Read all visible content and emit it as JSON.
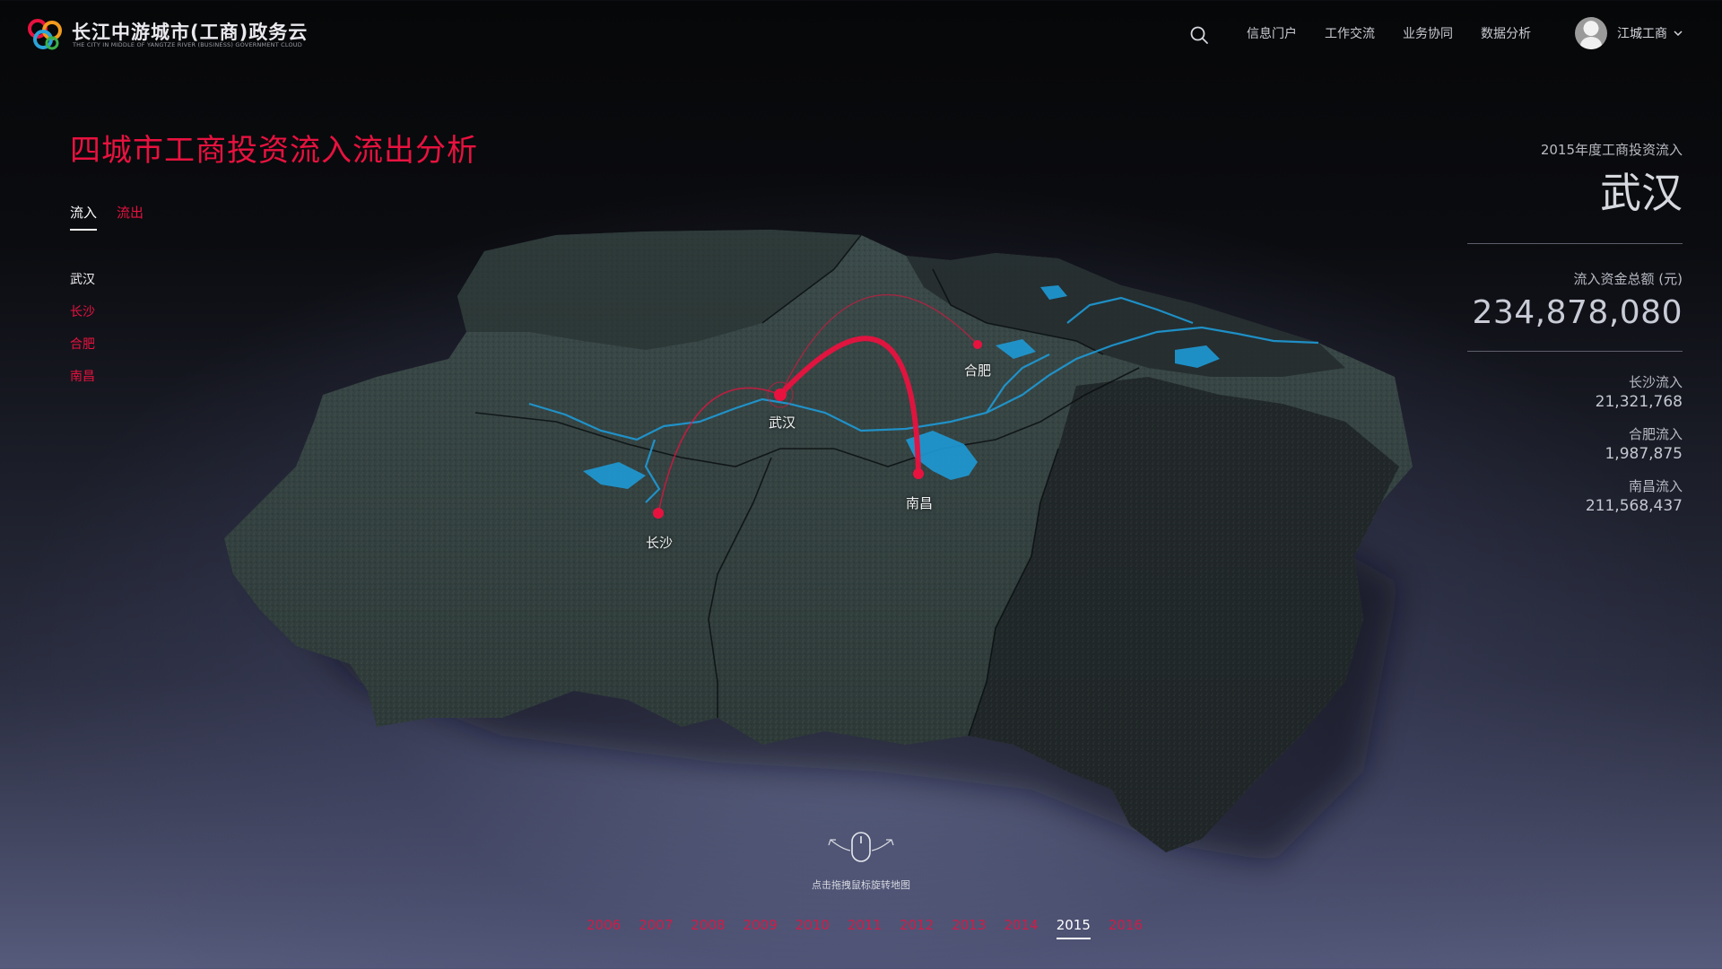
{
  "header": {
    "logo_title": "长江中游城市(工商)政务云",
    "logo_subtitle": "THE CITY IN MIDDLE OF YANGTZE RIVER (BUSINESS) GOVERNMENT CLOUD",
    "nav": [
      "信息门户",
      "工作交流",
      "业务协同",
      "数据分析"
    ],
    "user_name": "江城工商"
  },
  "page": {
    "title": "四城市工商投资流入流出分析",
    "tabs": {
      "inflow": "流入",
      "outflow": "流出"
    },
    "cities": [
      "武汉",
      "长沙",
      "合肥",
      "南昌"
    ]
  },
  "summary": {
    "year_label": "2015年度工商投资流入",
    "city": "武汉",
    "total_label": "流入资金总额 (元)",
    "total_value": "234,878,080",
    "flows": [
      {
        "label": "长沙流入",
        "value": "21,321,768"
      },
      {
        "label": "合肥流入",
        "value": "1,987,875"
      },
      {
        "label": "南昌流入",
        "value": "211,568,437"
      }
    ]
  },
  "map": {
    "labels": {
      "wuhan": "武汉",
      "changsha": "长沙",
      "hefei": "合肥",
      "nanchang": "南昌"
    }
  },
  "hint": "点击拖拽鼠标旋转地图",
  "timeline": {
    "years": [
      "2006",
      "2007",
      "2008",
      "2009",
      "2010",
      "2011",
      "2012",
      "2013",
      "2014",
      "2015",
      "2016"
    ],
    "selected": "2015"
  },
  "colors": {
    "accent": "#e8123f",
    "river": "#1e9ad6"
  }
}
